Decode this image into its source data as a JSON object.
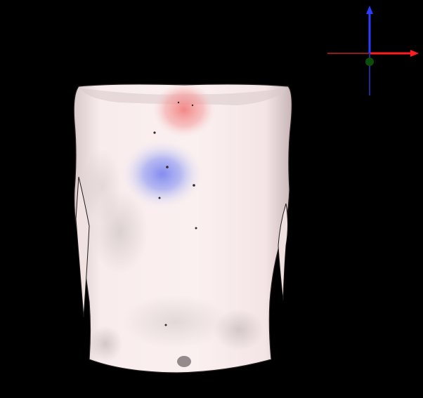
{
  "viewer": {
    "background_color": "#000000",
    "model": {
      "name": "torso-surface-model",
      "base_color": "#f6e7e6",
      "shadow_color": "#8f8486",
      "highlight_color": "#fffafa"
    },
    "deviation_regions": [
      {
        "name": "upper-chest-positive-deviation",
        "color": "#f27a7a"
      },
      {
        "name": "left-chest-negative-deviation",
        "color": "#7d86f0"
      }
    ],
    "axes": {
      "x_positive_color": "#ff1d1d",
      "x_negative_color": "#8b1d1d",
      "y_positive_color": "#2a3cff",
      "y_negative_color": "#1f2a9b",
      "origin_color": "#0b4d0b"
    }
  }
}
